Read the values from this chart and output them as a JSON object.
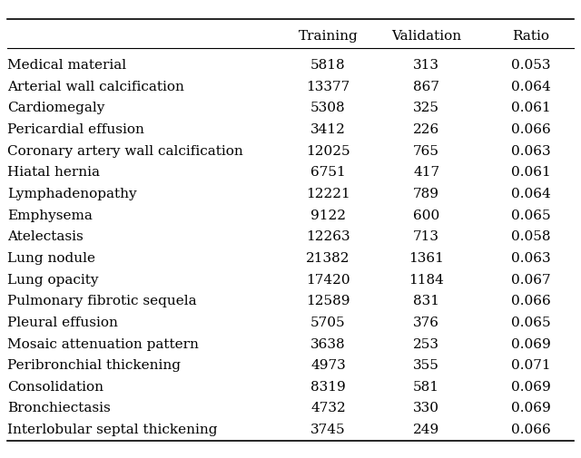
{
  "columns": [
    "Training",
    "Validation",
    "Ratio"
  ],
  "rows": [
    [
      "Medical material",
      "5818",
      "313",
      "0.053"
    ],
    [
      "Arterial wall calcification",
      "13377",
      "867",
      "0.064"
    ],
    [
      "Cardiomegaly",
      "5308",
      "325",
      "0.061"
    ],
    [
      "Pericardial effusion",
      "3412",
      "226",
      "0.066"
    ],
    [
      "Coronary artery wall calcification",
      "12025",
      "765",
      "0.063"
    ],
    [
      "Hiatal hernia",
      "6751",
      "417",
      "0.061"
    ],
    [
      "Lymphadenopathy",
      "12221",
      "789",
      "0.064"
    ],
    [
      "Emphysema",
      "9122",
      "600",
      "0.065"
    ],
    [
      "Atelectasis",
      "12263",
      "713",
      "0.058"
    ],
    [
      "Lung nodule",
      "21382",
      "1361",
      "0.063"
    ],
    [
      "Lung opacity",
      "17420",
      "1184",
      "0.067"
    ],
    [
      "Pulmonary fibrotic sequela",
      "12589",
      "831",
      "0.066"
    ],
    [
      "Pleural effusion",
      "5705",
      "376",
      "0.065"
    ],
    [
      "Mosaic attenuation pattern",
      "3638",
      "253",
      "0.069"
    ],
    [
      "Peribronchial thickening",
      "4973",
      "355",
      "0.071"
    ],
    [
      "Consolidation",
      "8319",
      "581",
      "0.069"
    ],
    [
      "Bronchiectasis",
      "4732",
      "330",
      "0.069"
    ],
    [
      "Interlobular septal thickening",
      "3745",
      "249",
      "0.066"
    ]
  ],
  "background_color": "#ffffff",
  "text_color": "#000000",
  "font_size": 11,
  "header_font_size": 11
}
